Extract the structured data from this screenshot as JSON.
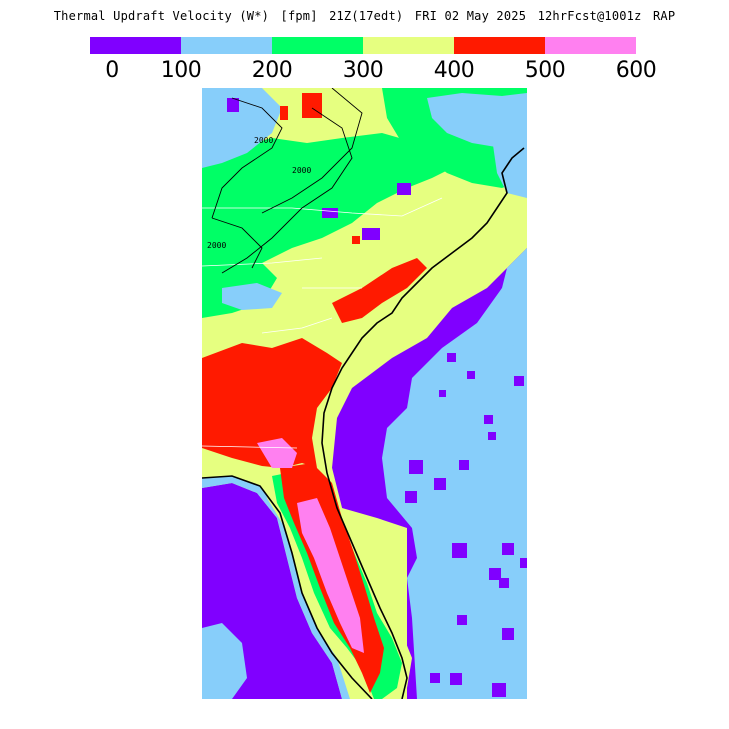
{
  "header": {
    "product": "Thermal Updraft Velocity (W*)",
    "units": "[fpm]",
    "valid_time": "21Z(17edt)",
    "valid_date": "FRI 02 May 2025",
    "forecast": "12hrFcst@1001z",
    "model": "RAP"
  },
  "colorbar": {
    "colors": [
      "#8000ff",
      "#87cefa",
      "#00ff66",
      "#e6ff80",
      "#ff1a00",
      "#ff80f0"
    ],
    "ticks": [
      "0",
      "100",
      "200",
      "300",
      "400",
      "500",
      "600"
    ]
  },
  "map": {
    "region": "southeastern-us",
    "contour_labels": [
      "2000",
      "2000",
      "2000"
    ],
    "colors": {
      "ocean": "#87cefa",
      "level_0": "#8000ff",
      "level_100": "#87cefa",
      "level_200": "#00ff66",
      "level_300": "#e6ff80",
      "level_400": "#ff1a00",
      "level_500": "#ff80f0"
    }
  }
}
